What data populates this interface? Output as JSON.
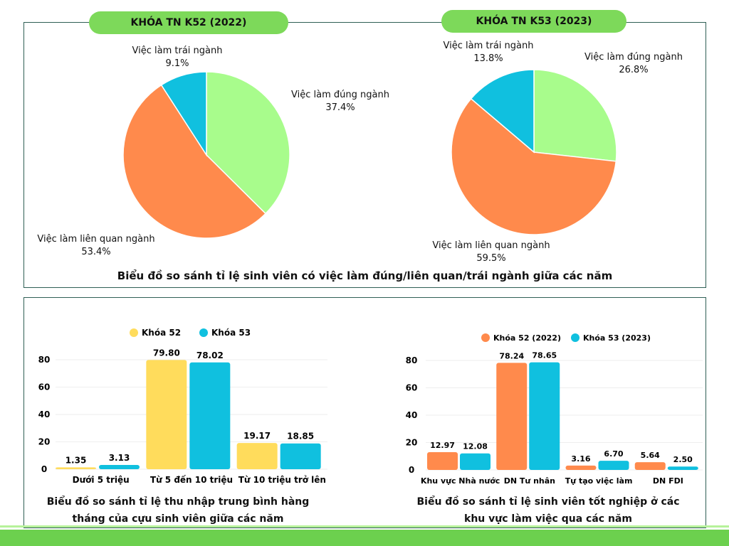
{
  "pies_title": "Biểu đồ so sánh tỉ lệ sinh viên có việc làm đúng/liên quan/trái ngành giữa các năm",
  "colors": {
    "green": "#a8fc8c",
    "orange": "#ff8a4c",
    "blue": "#10c0df",
    "yellow": "#ffdc5c",
    "banner": "#7dd95a"
  },
  "chart_data": [
    {
      "type": "pie",
      "title": "KHÓA TN K52 (2022)",
      "slices": [
        {
          "label": "Việc làm đúng ngành",
          "value": 37.4,
          "text": "37.4%",
          "color": "#a8fc8c"
        },
        {
          "label": "Việc làm liên quan ngành",
          "value": 53.4,
          "text": "53.4%",
          "color": "#ff8a4c"
        },
        {
          "label": "Việc làm trái ngành",
          "value": 9.1,
          "text": "9.1%",
          "color": "#10c0df"
        }
      ]
    },
    {
      "type": "pie",
      "title": "KHÓA TN K53 (2023)",
      "slices": [
        {
          "label": "Việc làm đúng ngành",
          "value": 26.8,
          "text": "26.8%",
          "color": "#a8fc8c"
        },
        {
          "label": "Việc làm liên quan ngành",
          "value": 59.5,
          "text": "59.5%",
          "color": "#ff8a4c"
        },
        {
          "label": "Việc làm trái ngành",
          "value": 13.8,
          "text": "13.8%",
          "color": "#10c0df"
        }
      ]
    },
    {
      "type": "bar",
      "title": "Biểu đồ so sánh tỉ lệ thu nhập trung bình hàng tháng của cựu sinh viên giữa các năm",
      "title_lines": [
        "Biểu đồ so sánh tỉ lệ thu nhập trung bình hàng",
        "tháng của cựu sinh viên giữa các năm"
      ],
      "categories": [
        "Dưới 5 triệu",
        "Từ 5 đến 10 triệu",
        "Từ 10 triệu trở lên"
      ],
      "series": [
        {
          "name": "Khóa 52",
          "color": "#ffdc5c",
          "values": [
            1.35,
            79.8,
            19.17
          ],
          "labels": [
            "1.35",
            "79.80",
            "19.17"
          ]
        },
        {
          "name": "Khóa 53",
          "color": "#10c0df",
          "values": [
            3.13,
            78.02,
            18.85
          ],
          "labels": [
            "3.13",
            "78.02",
            "18.85"
          ]
        }
      ],
      "yticks": [
        "0",
        "20",
        "40",
        "60",
        "80"
      ],
      "ylim": [
        0,
        80
      ],
      "legend": "top-center"
    },
    {
      "type": "bar",
      "title": "Biểu đồ so sánh tỉ lệ sinh viên tốt nghiệp ở các khu vực làm việc qua các năm",
      "title_lines": [
        "Biểu đồ so sánh tỉ lệ sinh viên tốt nghiệp ở các",
        "khu vực làm việc qua các năm"
      ],
      "categories": [
        "Khu vực Nhà nước",
        "DN Tư nhân",
        "Tự tạo việc làm",
        "DN FDI"
      ],
      "series": [
        {
          "name": "Khóa 52 (2022)",
          "color": "#ff8a4c",
          "values": [
            12.97,
            78.24,
            3.16,
            5.64
          ],
          "labels": [
            "12.97",
            "78.24",
            "3.16",
            "5.64"
          ]
        },
        {
          "name": "Khóa 53 (2023)",
          "color": "#10c0df",
          "values": [
            12.08,
            78.65,
            6.7,
            2.5
          ],
          "labels": [
            "12.08",
            "78.65",
            "6.70",
            "2.50"
          ]
        }
      ],
      "yticks": [
        "0",
        "20",
        "40",
        "60",
        "80"
      ],
      "ylim": [
        0,
        80
      ],
      "legend": "top-center"
    }
  ]
}
